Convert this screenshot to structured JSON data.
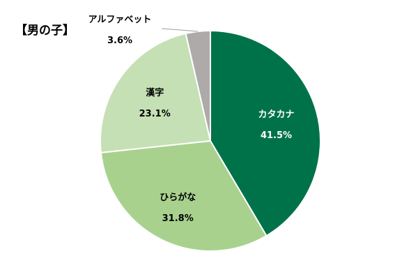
{
  "chart_data": {
    "type": "pie",
    "title": "【男の子】",
    "start_angle_deg": 0,
    "direction": "clockwise",
    "slices": [
      {
        "name": "カタカナ",
        "value": 41.5,
        "label": "41.5%",
        "color": "#00724A",
        "text_color": "#FFFFFF"
      },
      {
        "name": "ひらがな",
        "value": 31.8,
        "label": "31.8%",
        "color": "#A9D18E",
        "text_color": "#000000"
      },
      {
        "name": "漢字",
        "value": 23.1,
        "label": "23.1%",
        "color": "#C5E0B4",
        "text_color": "#000000"
      },
      {
        "name": "アルファベット",
        "value": 3.6,
        "label": "3.6%",
        "color": "#AEAAAA",
        "text_color": "#000000"
      }
    ],
    "legend": "none"
  }
}
